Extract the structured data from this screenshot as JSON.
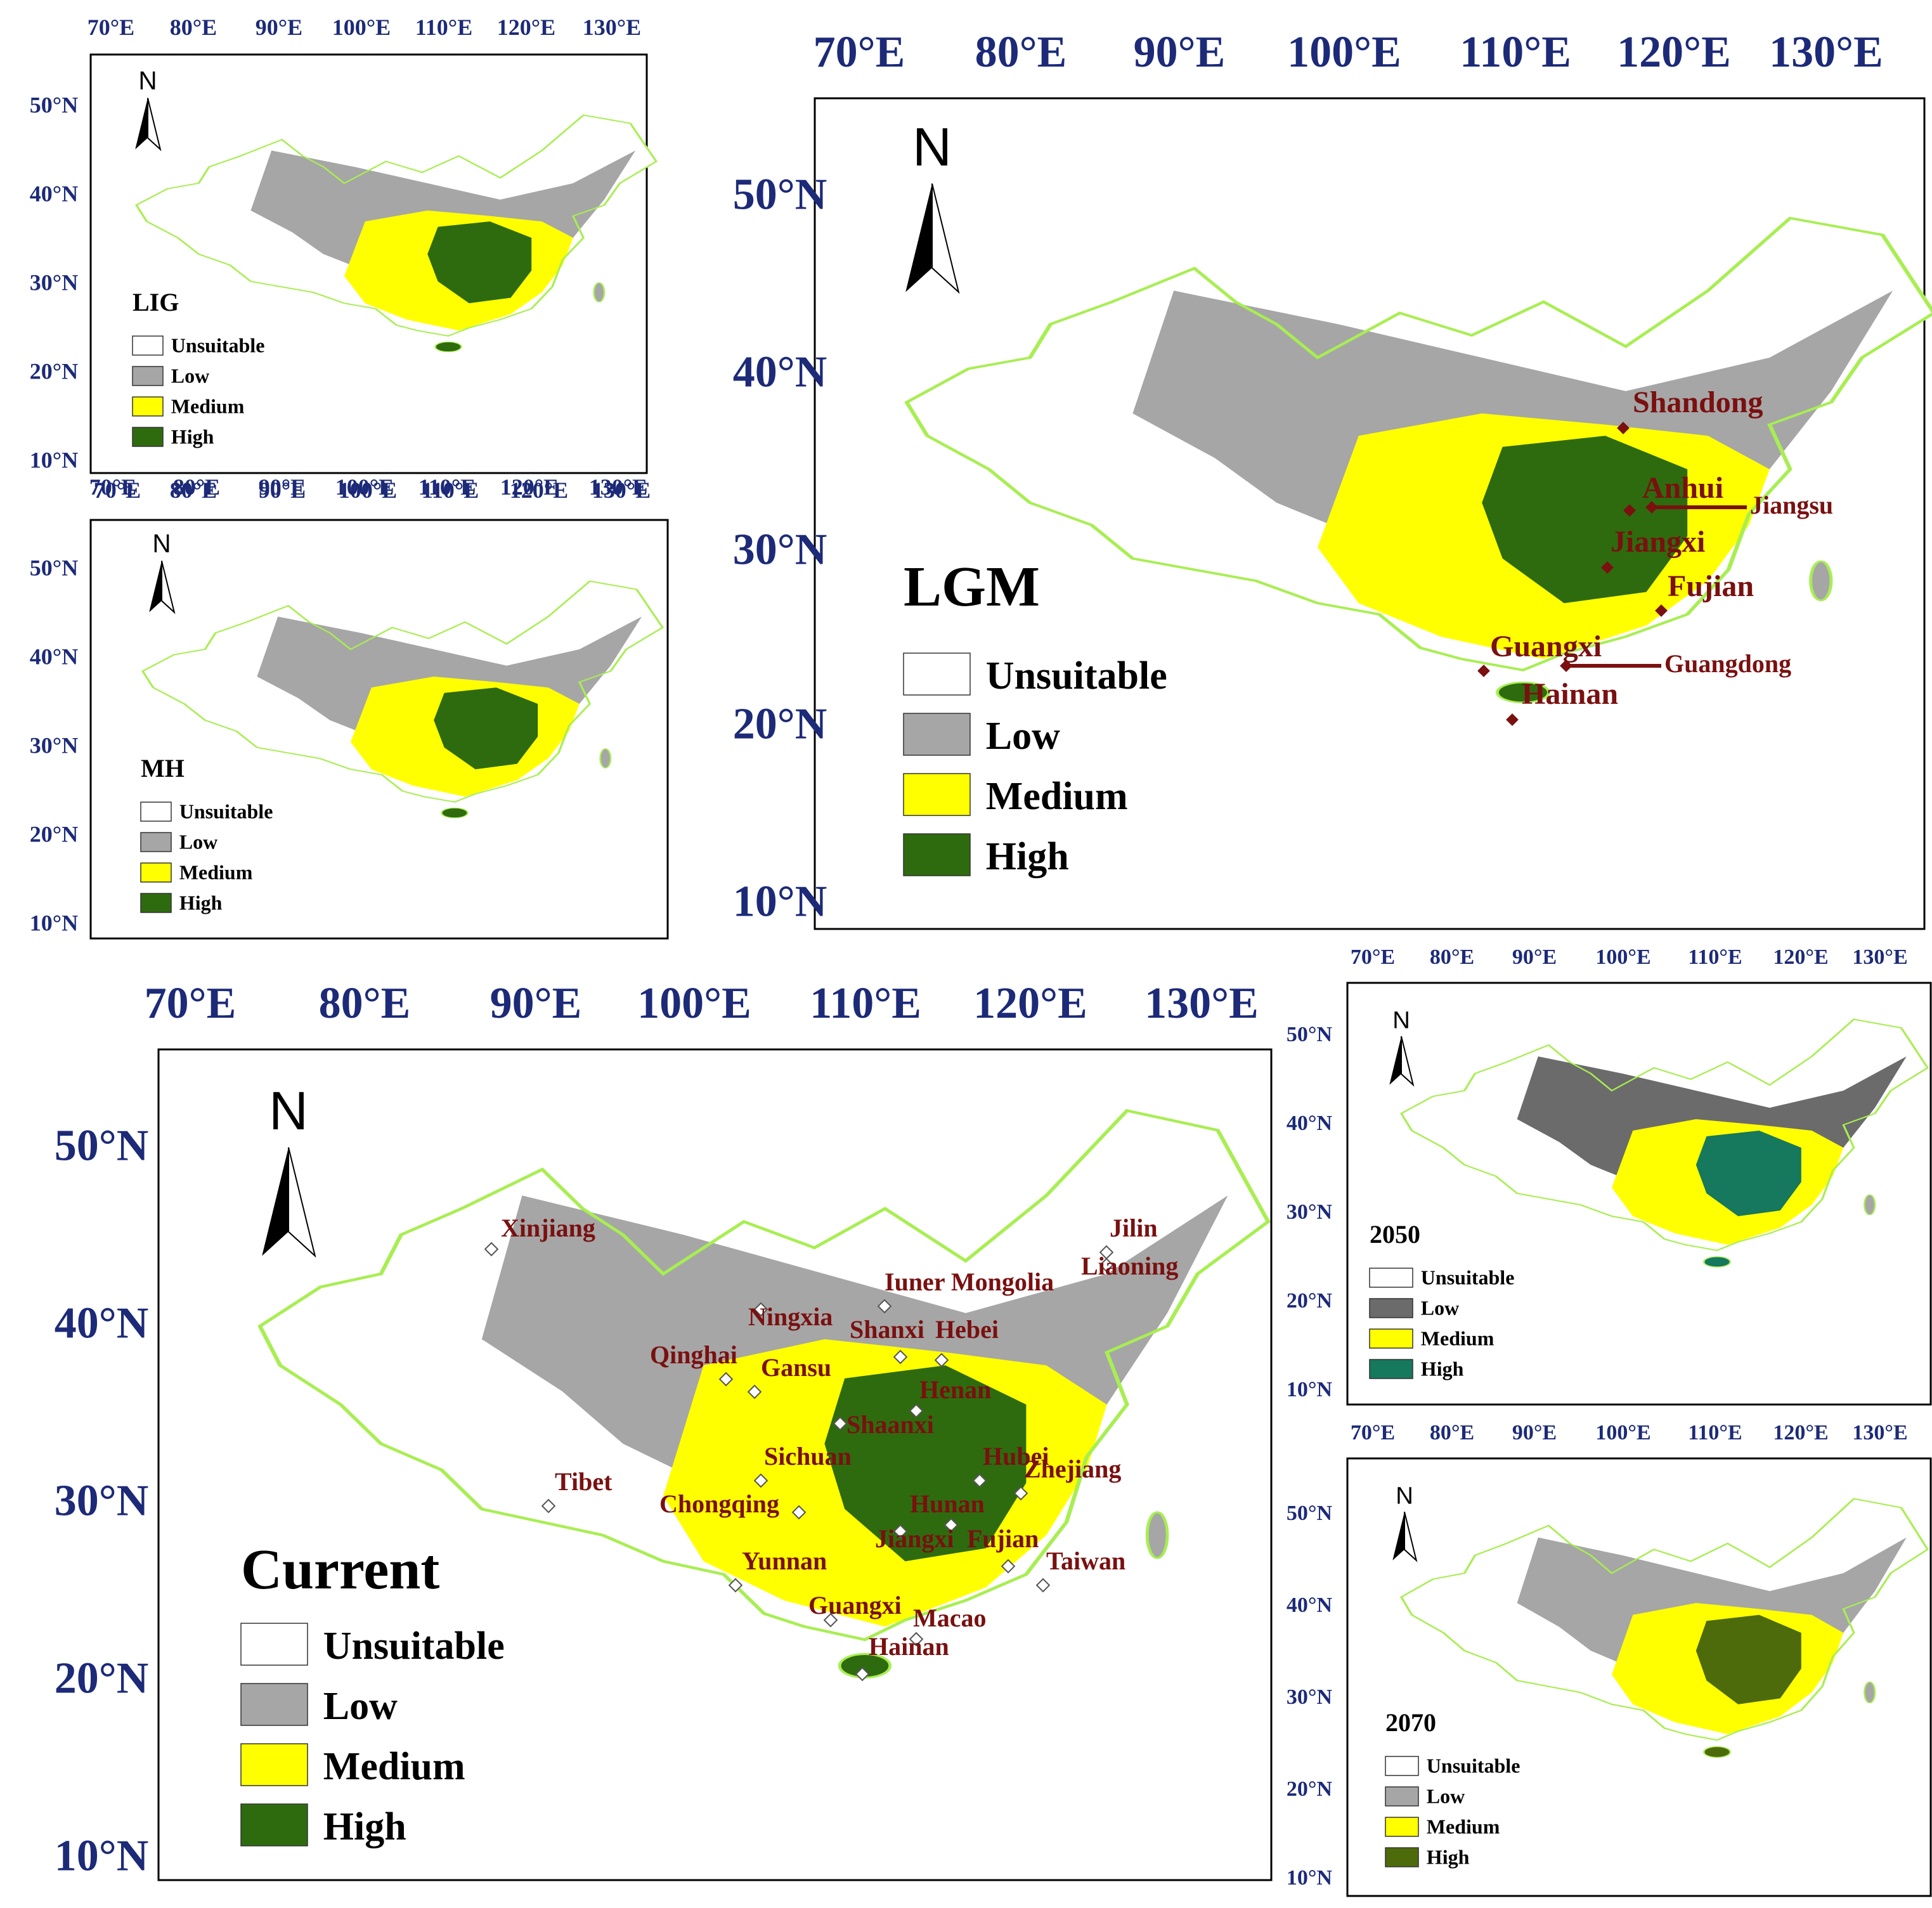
{
  "colors": {
    "unsuitable": "#ffffff",
    "low": "#a6a6a6",
    "low_dark": "#6b6b6b",
    "medium": "#ffff00",
    "high": "#2e6b0e",
    "high_teal": "#16785c",
    "high_olive": "#4d6b0a",
    "border": "#a8ee52",
    "tick_label": "#1c2a78",
    "province_label": "#7a1010"
  },
  "north_label": "N",
  "legend_labels": [
    "Unsuitable",
    "Low",
    "Medium",
    "High"
  ],
  "lon_ticks": [
    "70°E",
    "80°E",
    "90°E",
    "100°E",
    "110°E",
    "120°E",
    "130°E"
  ],
  "lat_ticks": [
    "50°N",
    "40°N",
    "30°N",
    "20°N",
    "10°N"
  ],
  "panels": [
    {
      "id": "lig",
      "title": "LIG",
      "high_color": "high"
    },
    {
      "id": "mh",
      "title": "MH",
      "high_color": "high"
    },
    {
      "id": "lgm",
      "title": "LGM",
      "high_color": "high"
    },
    {
      "id": "current",
      "title": "Current",
      "high_color": "high"
    },
    {
      "id": "y2050",
      "title": "2050",
      "high_color": "high_teal"
    },
    {
      "id": "y2070",
      "title": "2070",
      "high_color": "high_olive"
    }
  ],
  "lgm_provinces": [
    "Shandong",
    "Anhui",
    "Jiangsu",
    "Jiangxi",
    "Fujian",
    "Guangxi",
    "Guangdong",
    "Hainan"
  ],
  "current_provinces": [
    "Xinjiang",
    "Jilin",
    "Liaoning",
    "Iuner Mongolia",
    "Ningxia",
    "Shanxi",
    "Hebei",
    "Qinghai",
    "Gansu",
    "Henan",
    "Shaanxi",
    "Sichuan",
    "Hubei",
    "Zhejiang",
    "Tibet",
    "Chongqing",
    "Hunan",
    "Jiangxi",
    "Fujian",
    "Taiwan",
    "Yunnan",
    "Guangxi",
    "Macao",
    "Hainan"
  ]
}
